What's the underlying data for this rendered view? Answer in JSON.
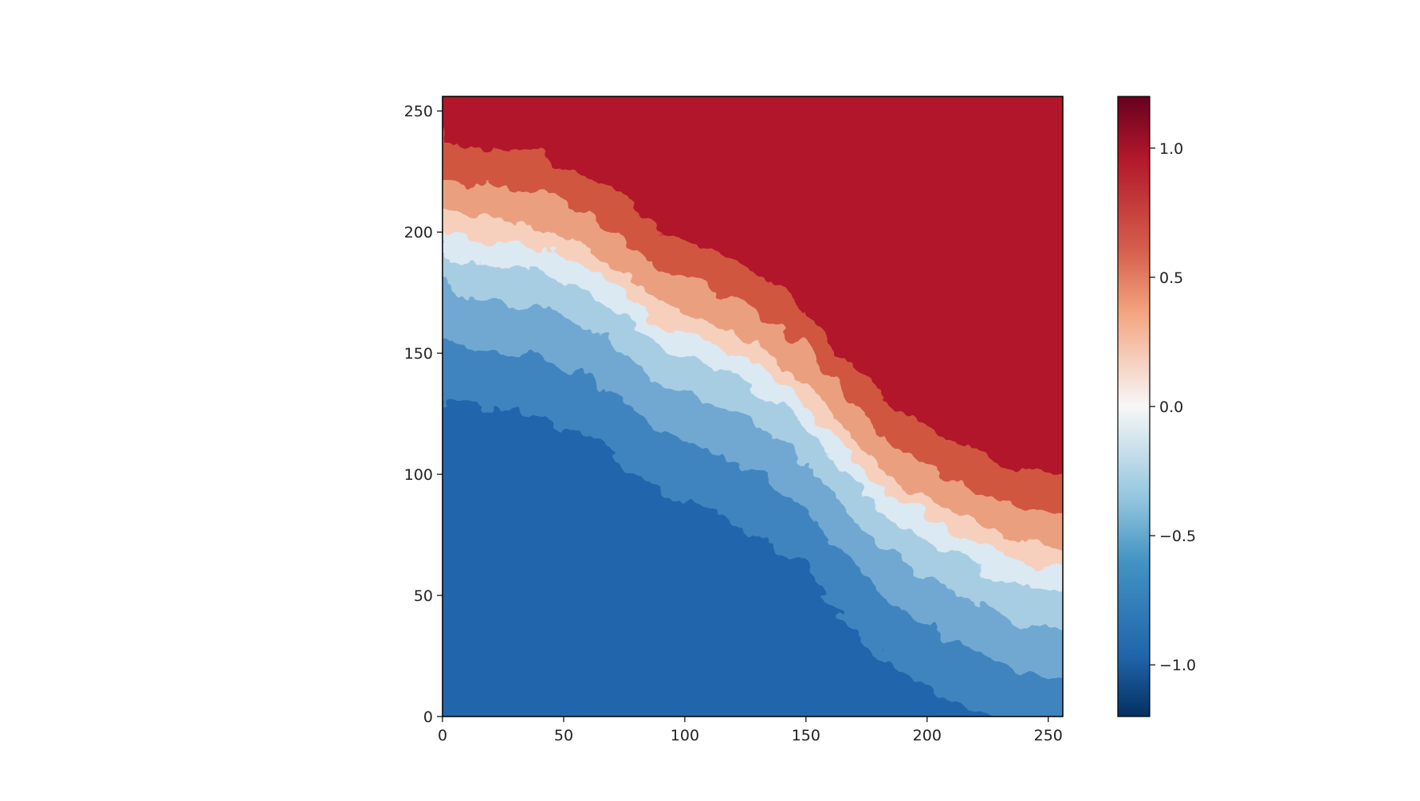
{
  "chart_data": {
    "type": "heatmap",
    "title": "",
    "xlabel": "",
    "ylabel": "",
    "colormap": "RdBu_r",
    "colors": {
      "low": "#053061",
      "mid_low": "#2166ac",
      "light_blue": "#92c5de",
      "mid": "#f7f7f7",
      "light_red": "#f4a582",
      "mid_high": "#b2182b",
      "high": "#67001f"
    },
    "xlim": [
      0,
      256
    ],
    "ylim": [
      0,
      256
    ],
    "xticks": [
      0,
      50,
      100,
      150,
      200,
      250
    ],
    "yticks": [
      0,
      50,
      100,
      150,
      200,
      250
    ],
    "xtick_labels": [
      "0",
      "50",
      "100",
      "150",
      "200",
      "250"
    ],
    "ytick_labels": [
      "0",
      "50",
      "100",
      "150",
      "200",
      "250"
    ],
    "colorbar": {
      "range": [
        -1.2,
        1.2
      ],
      "ticks": [
        -1.0,
        -0.5,
        0.0,
        0.5,
        1.0
      ],
      "tick_labels": [
        "−1.0",
        "−0.5",
        "0.0",
        "0.5",
        "1.0"
      ]
    },
    "field_description_values": {
      "upper_region_value": 1.0,
      "lower_region_value": -1.0
    },
    "interface_points": [
      [
        0,
        200
      ],
      [
        20,
        197
      ],
      [
        40,
        194
      ],
      [
        60,
        185
      ],
      [
        75,
        175
      ],
      [
        90,
        162
      ],
      [
        110,
        155
      ],
      [
        130,
        145
      ],
      [
        150,
        130
      ],
      [
        165,
        112
      ],
      [
        180,
        95
      ],
      [
        200,
        82
      ],
      [
        220,
        72
      ],
      [
        240,
        63
      ],
      [
        256,
        62
      ]
    ]
  }
}
